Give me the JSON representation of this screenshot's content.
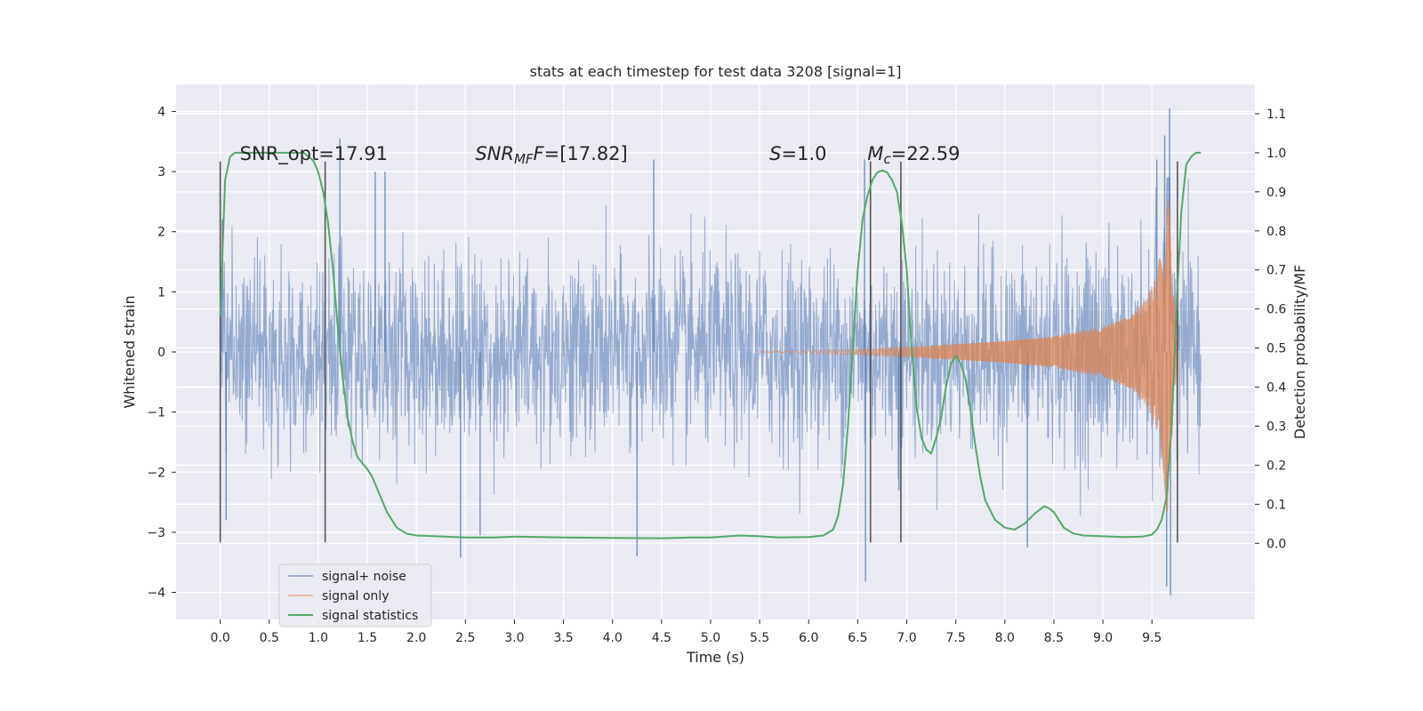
{
  "chart_data": {
    "type": "line",
    "title": "stats at each timestep for test data 3208 [signal=1]",
    "xlabel": "Time (s)",
    "ylabel": "Whitened strain",
    "y2label": "Detection probability/MF",
    "xlim": [
      -0.45,
      10.55
    ],
    "ylim": [
      -4.45,
      4.45
    ],
    "y2lim": [
      -0.195,
      1.175
    ],
    "xticks": [
      "0.0",
      "0.5",
      "1.0",
      "1.5",
      "2.0",
      "2.5",
      "3.0",
      "3.5",
      "4.0",
      "4.5",
      "5.0",
      "5.5",
      "6.0",
      "6.5",
      "7.0",
      "7.5",
      "8.0",
      "8.5",
      "9.0",
      "9.5"
    ],
    "yticks": [
      "4",
      "3",
      "2",
      "1",
      "0",
      "−1",
      "−2",
      "−3",
      "−4"
    ],
    "y2ticks": [
      "1.1",
      "1.0",
      "0.9",
      "0.8",
      "0.7",
      "0.6",
      "0.5",
      "0.4",
      "0.3",
      "0.2",
      "0.1",
      "0.0"
    ],
    "grid": true,
    "legend_position": "lower-left",
    "annotations": {
      "snr_opt": "SNR_opt=17.91",
      "snr_mf_main": "SNR",
      "snr_mf_sub": "MF",
      "snr_mf_rest": "=[17.82]",
      "s_main": "S",
      "s_rest": "=1.0",
      "mc_main": "M",
      "mc_sub": "c",
      "mc_rest": "=22.59"
    },
    "vertical_markers_x": [
      0.0,
      1.07,
      6.63,
      6.94,
      9.76
    ],
    "series": [
      {
        "name": "signal+ noise",
        "color": "#4c72b0",
        "x_range": [
          0.0,
          10.0
        ],
        "typical_amplitude": 1.3,
        "peak_max": 4.05,
        "peak_min": -4.05,
        "notable_spikes": [
          {
            "x": 0.02,
            "y": 2.2
          },
          {
            "x": 0.06,
            "y": -2.8
          },
          {
            "x": 1.22,
            "y": 3.55
          },
          {
            "x": 1.58,
            "y": 3.0
          },
          {
            "x": 1.68,
            "y": 3.0
          },
          {
            "x": 2.45,
            "y": -3.42
          },
          {
            "x": 2.65,
            "y": -3.05
          },
          {
            "x": 4.25,
            "y": -3.4
          },
          {
            "x": 4.42,
            "y": 3.2
          },
          {
            "x": 6.57,
            "y": 3.2
          },
          {
            "x": 6.58,
            "y": -3.82
          },
          {
            "x": 6.92,
            "y": -2.3
          },
          {
            "x": 8.23,
            "y": -3.25
          },
          {
            "x": 9.55,
            "y": 3.2
          },
          {
            "x": 9.63,
            "y": 3.6
          },
          {
            "x": 9.65,
            "y": -3.9
          },
          {
            "x": 9.68,
            "y": 4.05
          },
          {
            "x": 9.69,
            "y": -4.05
          }
        ]
      },
      {
        "name": "signal only",
        "color": "#dd8452",
        "x_range": [
          5.5,
          10.0
        ],
        "peak": 3.0,
        "envelope": [
          [
            5.5,
            0.0
          ],
          [
            6.0,
            0.02
          ],
          [
            7.0,
            0.08
          ],
          [
            8.0,
            0.18
          ],
          [
            8.5,
            0.26
          ],
          [
            9.0,
            0.42
          ],
          [
            9.3,
            0.62
          ],
          [
            9.45,
            0.9
          ],
          [
            9.55,
            1.3
          ],
          [
            9.62,
            2.0
          ],
          [
            9.66,
            3.0
          ],
          [
            9.7,
            1.5
          ],
          [
            9.76,
            0.0
          ]
        ]
      },
      {
        "name": "signal statistics",
        "color": "#55a868",
        "axis": "right",
        "x": [
          0.0,
          0.05,
          0.1,
          0.15,
          0.2,
          0.3,
          0.5,
          0.7,
          0.85,
          0.95,
          1.0,
          1.05,
          1.1,
          1.15,
          1.2,
          1.25,
          1.3,
          1.35,
          1.4,
          1.5,
          1.55,
          1.6,
          1.7,
          1.8,
          1.9,
          2.0,
          2.2,
          2.5,
          2.8,
          3.0,
          3.5,
          4.0,
          4.5,
          4.8,
          5.0,
          5.3,
          5.5,
          5.7,
          6.0,
          6.15,
          6.25,
          6.3,
          6.35,
          6.4,
          6.45,
          6.5,
          6.55,
          6.6,
          6.65,
          6.7,
          6.75,
          6.8,
          6.85,
          6.9,
          6.95,
          7.0,
          7.05,
          7.1,
          7.15,
          7.2,
          7.25,
          7.3,
          7.35,
          7.4,
          7.45,
          7.5,
          7.55,
          7.6,
          7.65,
          7.7,
          7.75,
          7.8,
          7.9,
          8.0,
          8.1,
          8.2,
          8.3,
          8.4,
          8.45,
          8.5,
          8.55,
          8.6,
          8.7,
          8.8,
          9.0,
          9.2,
          9.4,
          9.5,
          9.55,
          9.6,
          9.65,
          9.7,
          9.75,
          9.8,
          9.85,
          9.9,
          9.95,
          10.0
        ],
        "y": [
          0.58,
          0.93,
          0.99,
          1.0,
          1.0,
          1.0,
          1.0,
          1.0,
          1.0,
          0.98,
          0.95,
          0.9,
          0.82,
          0.7,
          0.55,
          0.42,
          0.32,
          0.26,
          0.22,
          0.19,
          0.17,
          0.14,
          0.08,
          0.04,
          0.025,
          0.02,
          0.018,
          0.015,
          0.015,
          0.017,
          0.015,
          0.014,
          0.013,
          0.015,
          0.015,
          0.02,
          0.018,
          0.015,
          0.016,
          0.02,
          0.035,
          0.07,
          0.15,
          0.3,
          0.5,
          0.7,
          0.83,
          0.89,
          0.93,
          0.95,
          0.955,
          0.95,
          0.93,
          0.9,
          0.82,
          0.7,
          0.5,
          0.35,
          0.27,
          0.24,
          0.23,
          0.27,
          0.32,
          0.4,
          0.46,
          0.48,
          0.46,
          0.42,
          0.34,
          0.25,
          0.17,
          0.11,
          0.06,
          0.04,
          0.035,
          0.05,
          0.075,
          0.095,
          0.09,
          0.08,
          0.06,
          0.04,
          0.025,
          0.02,
          0.018,
          0.016,
          0.017,
          0.022,
          0.035,
          0.06,
          0.12,
          0.3,
          0.6,
          0.85,
          0.97,
          0.99,
          1.0,
          1.0
        ]
      }
    ]
  }
}
